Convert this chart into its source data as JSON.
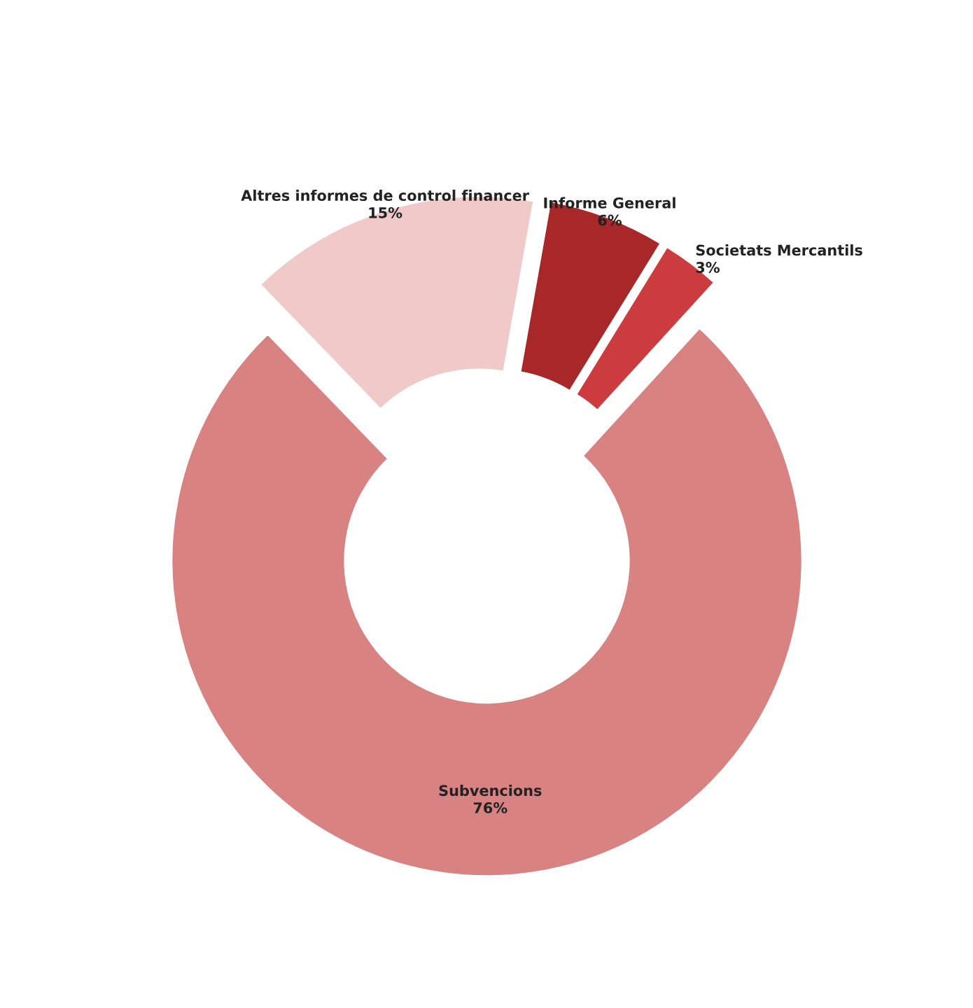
{
  "chart_data": {
    "type": "donut",
    "categories": [
      "Informe General",
      "Societats Mercantils",
      "Subvencions",
      "Altres informes de control financer"
    ],
    "values": [
      6,
      3,
      76,
      15
    ],
    "value_labels": [
      "6%",
      "3%",
      "76%",
      "15%"
    ],
    "colors": [
      "#a8282a",
      "#cc3c3e",
      "#d98282",
      "#f0c9c9"
    ],
    "legend": false
  }
}
